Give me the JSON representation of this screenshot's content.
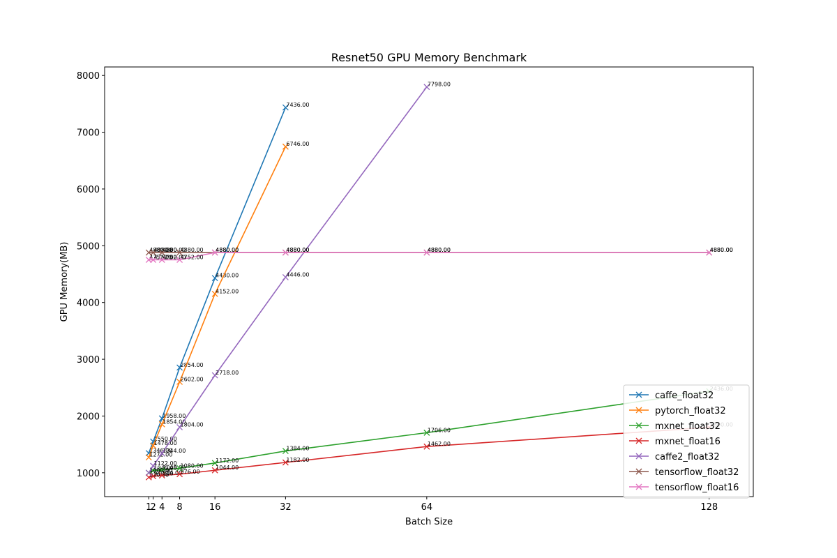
{
  "chart_data": {
    "type": "line",
    "title": "Resnet50 GPU Memory Benchmark",
    "xlabel": "Batch Size",
    "ylabel": "GPU Memory(MB)",
    "xlim": [
      -9,
      138
    ],
    "ylim": [
      580,
      8150
    ],
    "xticks": [
      1,
      2,
      4,
      8,
      16,
      32,
      64,
      128
    ],
    "yticks": [
      1000,
      2000,
      3000,
      4000,
      5000,
      6000,
      7000,
      8000
    ],
    "marker": "x",
    "legend_position": "lower-right",
    "grid": false,
    "series": [
      {
        "name": "caffe_float32",
        "color": "#1f77b4",
        "x": [
          1,
          2,
          4,
          8,
          16,
          32
        ],
        "y": [
          1346,
          1550,
          1958,
          2854,
          4430,
          7436
        ]
      },
      {
        "name": "pytorch_float32",
        "color": "#ff7f0e",
        "x": [
          1,
          2,
          4,
          8,
          16,
          32
        ],
        "y": [
          1272,
          1478,
          1854,
          2602,
          4152,
          6746
        ]
      },
      {
        "name": "mxnet_float32",
        "color": "#2ca02c",
        "x": [
          1,
          2,
          4,
          8,
          16,
          32,
          64,
          128
        ],
        "y": [
          1000,
          1040,
          1048,
          1080,
          1172,
          1384,
          1706,
          2436
        ]
      },
      {
        "name": "mxnet_float16",
        "color": "#d62728",
        "x": [
          1,
          2,
          4,
          8,
          16,
          32,
          64,
          128
        ],
        "y": [
          920,
          940,
          954,
          976,
          1044,
          1182,
          1462,
          1800
        ]
      },
      {
        "name": "caffe2_float32",
        "color": "#9467bd",
        "x": [
          1,
          2,
          4,
          8,
          16,
          32,
          64
        ],
        "y": [
          1000,
          1122,
          1344,
          1804,
          2718,
          4446,
          7798
        ]
      },
      {
        "name": "tensorflow_float32",
        "color": "#8c564b",
        "x": [
          1,
          2,
          4,
          8,
          16,
          32,
          64,
          128
        ],
        "y": [
          4880,
          4880,
          4880,
          4880,
          4880,
          4880,
          4880,
          4880
        ]
      },
      {
        "name": "tensorflow_float16",
        "color": "#e377c2",
        "x": [
          1,
          2,
          4,
          8,
          16,
          32,
          64,
          128
        ],
        "y": [
          4752,
          4752,
          4752,
          4752,
          4880,
          4880,
          4880,
          4880
        ]
      }
    ]
  }
}
